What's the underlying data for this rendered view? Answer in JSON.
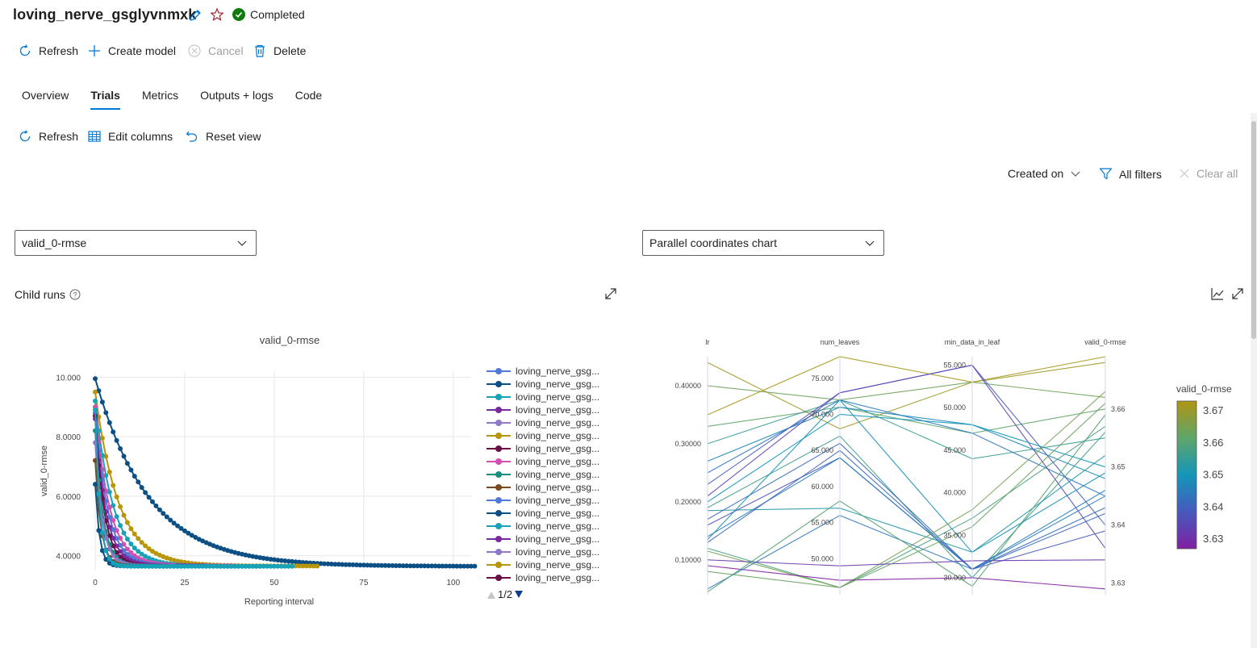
{
  "header": {
    "run_name": "loving_nerve_gsglyvnmxk",
    "status": "Completed",
    "status_color": "#107c10"
  },
  "toolbar": {
    "refresh_label": "Refresh",
    "create_model_label": "Create model",
    "cancel_label": "Cancel",
    "delete_label": "Delete"
  },
  "tabs": [
    "Overview",
    "Trials",
    "Metrics",
    "Outputs + logs",
    "Code"
  ],
  "active_tab": "Trials",
  "trials_toolbar": {
    "refresh_label": "Refresh",
    "edit_columns_label": "Edit columns",
    "reset_view_label": "Reset view"
  },
  "filters": {
    "created_on_label": "Created on",
    "all_filters_label": "All filters",
    "clear_all_label": "Clear all"
  },
  "metric_select": {
    "value": "valid_0-rmse"
  },
  "chart_type_select": {
    "value": "Parallel coordinates chart"
  },
  "child_runs_label": "Child runs",
  "icons": {
    "edit": "pencil-icon",
    "favorite": "star-icon",
    "status": "check-circle-icon",
    "refresh": "refresh-icon",
    "create": "plus-icon",
    "cancel": "cancel-icon",
    "delete": "trash-icon",
    "columns": "table-icon",
    "reset": "undo-icon",
    "filter": "filter-icon",
    "clear": "close-icon",
    "expand": "expand-icon",
    "line": "line-chart-icon",
    "help": "help-icon"
  },
  "legend": {
    "items": [
      {
        "label": "loving_nerve_gsg...",
        "color": "#4e79d6"
      },
      {
        "label": "loving_nerve_gsg...",
        "color": "#0b4f85"
      },
      {
        "label": "loving_nerve_gsg...",
        "color": "#17a2b8"
      },
      {
        "label": "loving_nerve_gsg...",
        "color": "#7b2a9e"
      },
      {
        "label": "loving_nerve_gsg...",
        "color": "#8e79c8"
      },
      {
        "label": "loving_nerve_gsg...",
        "color": "#b8960a"
      },
      {
        "label": "loving_nerve_gsg...",
        "color": "#6a0f4a"
      },
      {
        "label": "loving_nerve_gsg...",
        "color": "#d44fb0"
      },
      {
        "label": "loving_nerve_gsg...",
        "color": "#178e7e"
      },
      {
        "label": "loving_nerve_gsg...",
        "color": "#7a4a1e"
      },
      {
        "label": "loving_nerve_gsg...",
        "color": "#4e79d6"
      },
      {
        "label": "loving_nerve_gsg...",
        "color": "#0b4f85"
      },
      {
        "label": "loving_nerve_gsg...",
        "color": "#17a2b8"
      },
      {
        "label": "loving_nerve_gsg...",
        "color": "#7b2a9e"
      },
      {
        "label": "loving_nerve_gsg...",
        "color": "#8e79c8"
      },
      {
        "label": "loving_nerve_gsg...",
        "color": "#b8960a"
      },
      {
        "label": "loving_nerve_gsg...",
        "color": "#6a0f4a"
      }
    ],
    "page": "1/2"
  },
  "chart_data": [
    {
      "type": "line",
      "title": "valid_0-rmse",
      "xlabel": "Reporting interval",
      "ylabel": "valid_0-rmse",
      "xlim": [
        0,
        105
      ],
      "ylim": [
        3.5,
        10.2
      ],
      "x_ticks": [
        "0",
        "25",
        "50",
        "75",
        "100"
      ],
      "x_tick_values": [
        0,
        25,
        50,
        75,
        100
      ],
      "y_ticks": [
        "4.0000",
        "6.0000",
        "8.0000",
        "10.000"
      ],
      "y_tick_values": [
        4,
        6,
        8,
        10
      ],
      "series": [
        {
          "name": "loving_nerve_gsg...",
          "color": "#0b4f85",
          "start": 9.95,
          "end": 3.64,
          "tau": 15,
          "length": 106
        },
        {
          "name": "loving_nerve_gsg...",
          "color": "#b8960a",
          "start": 9.5,
          "end": 3.65,
          "tau": 6.5,
          "length": 62
        },
        {
          "name": "loving_nerve_gsg...",
          "color": "#17a2b8",
          "start": 9.2,
          "end": 3.64,
          "tau": 5,
          "length": 55
        },
        {
          "name": "loving_nerve_gsg...",
          "color": "#d44fb0",
          "start": 9.0,
          "end": 3.66,
          "tau": 4,
          "length": 38
        },
        {
          "name": "loving_nerve_gsg...",
          "color": "#4e79d6",
          "start": 8.8,
          "end": 3.65,
          "tau": 3.5,
          "length": 33
        },
        {
          "name": "loving_nerve_gsg...",
          "color": "#7b2a9e",
          "start": 8.6,
          "end": 3.66,
          "tau": 3,
          "length": 30
        },
        {
          "name": "loving_nerve_gsg...",
          "color": "#6a0f4a",
          "start": 8.7,
          "end": 3.65,
          "tau": 2.5,
          "length": 26
        },
        {
          "name": "loving_nerve_gsg...",
          "color": "#178e7e",
          "start": 8.2,
          "end": 3.64,
          "tau": 2.2,
          "length": 24
        },
        {
          "name": "loving_nerve_gsg...",
          "color": "#8e79c8",
          "start": 7.8,
          "end": 3.66,
          "tau": 2,
          "length": 22
        },
        {
          "name": "loving_nerve_gsg...",
          "color": "#7a4a1e",
          "start": 7.2,
          "end": 3.65,
          "tau": 1.6,
          "length": 20
        },
        {
          "name": "loving_nerve_gsg...",
          "color": "#0b4f85",
          "start": 6.4,
          "end": 3.65,
          "tau": 1.2,
          "length": 18
        },
        {
          "name": "loving_nerve_gsg...",
          "color": "#17a2b8",
          "start": 8.9,
          "end": 3.64,
          "tau": 1.3,
          "length": 46
        }
      ]
    },
    {
      "type": "parallel_coordinates",
      "dimensions": [
        {
          "name": "lr",
          "range": [
            0.04,
            0.45
          ],
          "ticks": [
            0.1,
            0.2,
            0.3,
            0.4
          ],
          "tick_labels": [
            "0.10000",
            "0.20000",
            "0.30000",
            "0.40000"
          ]
        },
        {
          "name": "num_leaves",
          "range": [
            45,
            78
          ],
          "ticks": [
            50,
            55,
            60,
            65,
            70,
            75
          ],
          "tick_labels": [
            "50.000",
            "55.000",
            "60.000",
            "65.000",
            "70.000",
            "75.000"
          ]
        },
        {
          "name": "min_data_in_leaf",
          "range": [
            28,
            56
          ],
          "ticks": [
            30,
            35,
            40,
            45,
            50,
            55
          ],
          "tick_labels": [
            "30.000",
            "35.000",
            "40.000",
            "45.000",
            "50.000",
            "55.000"
          ]
        },
        {
          "name": "valid_0-rmse",
          "range": [
            3.628,
            3.669
          ],
          "ticks": [
            3.63,
            3.64,
            3.65,
            3.66
          ],
          "tick_labels": [
            "3.63",
            "3.64",
            "3.65",
            "3.66"
          ]
        }
      ],
      "color_scale": {
        "title": "valid_0-rmse",
        "ticks": [
          "3.67",
          "3.66",
          "3.65",
          "3.64",
          "3.63"
        ],
        "min": 3.63,
        "max": 3.67
      },
      "lines": [
        [
          0.44,
          68,
          53,
          3.668
        ],
        [
          0.4,
          72,
          53,
          3.662
        ],
        [
          0.35,
          78,
          53,
          3.669
        ],
        [
          0.33,
          71,
          47,
          3.66
        ],
        [
          0.3,
          72,
          44,
          3.655
        ],
        [
          0.27,
          71,
          48,
          3.648
        ],
        [
          0.25,
          72,
          47,
          3.645
        ],
        [
          0.23,
          73,
          55,
          3.64
        ],
        [
          0.21,
          73,
          55,
          3.636
        ],
        [
          0.2,
          70,
          48,
          3.65
        ],
        [
          0.19,
          67,
          30,
          3.656
        ],
        [
          0.185,
          57,
          33,
          3.652
        ],
        [
          0.17,
          66,
          31,
          3.643
        ],
        [
          0.16,
          64,
          31,
          3.639
        ],
        [
          0.14,
          64,
          31,
          3.646
        ],
        [
          0.135,
          72,
          33,
          3.649
        ],
        [
          0.13,
          65,
          31,
          3.642
        ],
        [
          0.12,
          46,
          37,
          3.657
        ],
        [
          0.115,
          46,
          38,
          3.663
        ],
        [
          0.1,
          49,
          32,
          3.634
        ],
        [
          0.09,
          47,
          30,
          3.629
        ],
        [
          0.08,
          46,
          36,
          3.661
        ],
        [
          0.05,
          56,
          31,
          3.645
        ],
        [
          0.045,
          58,
          29,
          3.659
        ]
      ]
    }
  ]
}
